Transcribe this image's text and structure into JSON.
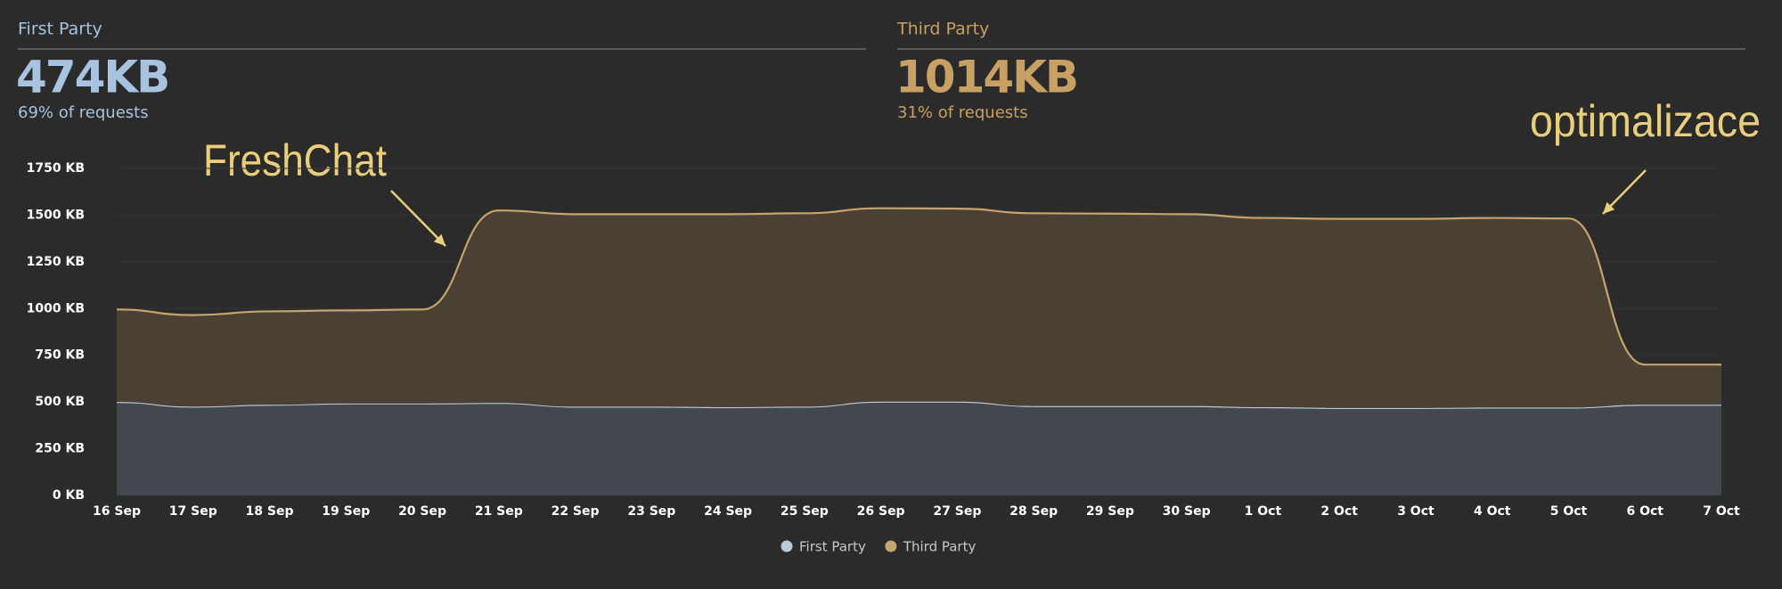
{
  "summary": [
    {
      "title": "First Party",
      "value": "474KB",
      "subtitle": "69% of requests",
      "color": "#a7c3df"
    },
    {
      "title": "Third Party",
      "value": "1014KB",
      "subtitle": "31% of requests",
      "color": "#c8a063"
    }
  ],
  "chart_data": {
    "type": "stacked_area",
    "categories": [
      "16 Sep",
      "17 Sep",
      "18 Sep",
      "19 Sep",
      "20 Sep",
      "21 Sep",
      "22 Sep",
      "23 Sep",
      "24 Sep",
      "25 Sep",
      "26 Sep",
      "27 Sep",
      "28 Sep",
      "29 Sep",
      "30 Sep",
      "1 Oct",
      "2 Oct",
      "3 Oct",
      "4 Oct",
      "5 Oct",
      "6 Oct",
      "7 Oct"
    ],
    "series": [
      {
        "name": "First Party",
        "color": "#b9cadb",
        "area_color": "#42484e",
        "values": [
          500,
          475,
          485,
          492,
          492,
          495,
          475,
          475,
          472,
          475,
          502,
          502,
          478,
          478,
          478,
          472,
          468,
          468,
          470,
          470,
          485,
          485
        ]
      },
      {
        "name": "Third Party",
        "color": "#c7a46d",
        "area_color": "#4a4034",
        "values": [
          495,
          490,
          500,
          498,
          503,
          1030,
          1030,
          1030,
          1033,
          1035,
          1035,
          1033,
          1032,
          1030,
          1027,
          1013,
          1012,
          1012,
          1015,
          1012,
          215,
          215
        ]
      }
    ],
    "ylim": [
      0,
      1750
    ],
    "yticks": [
      {
        "value": 0,
        "label": "0 KB"
      },
      {
        "value": 250,
        "label": "250 KB"
      },
      {
        "value": 500,
        "label": "500 KB"
      },
      {
        "value": 750,
        "label": "750 KB"
      },
      {
        "value": 1000,
        "label": "1000 KB"
      },
      {
        "value": 1250,
        "label": "1250 KB"
      },
      {
        "value": 1500,
        "label": "1500 KB"
      },
      {
        "value": 1750,
        "label": "1750 KB"
      }
    ],
    "grid": true,
    "annotations": [
      "FreshChat",
      "optimalizace"
    ]
  }
}
